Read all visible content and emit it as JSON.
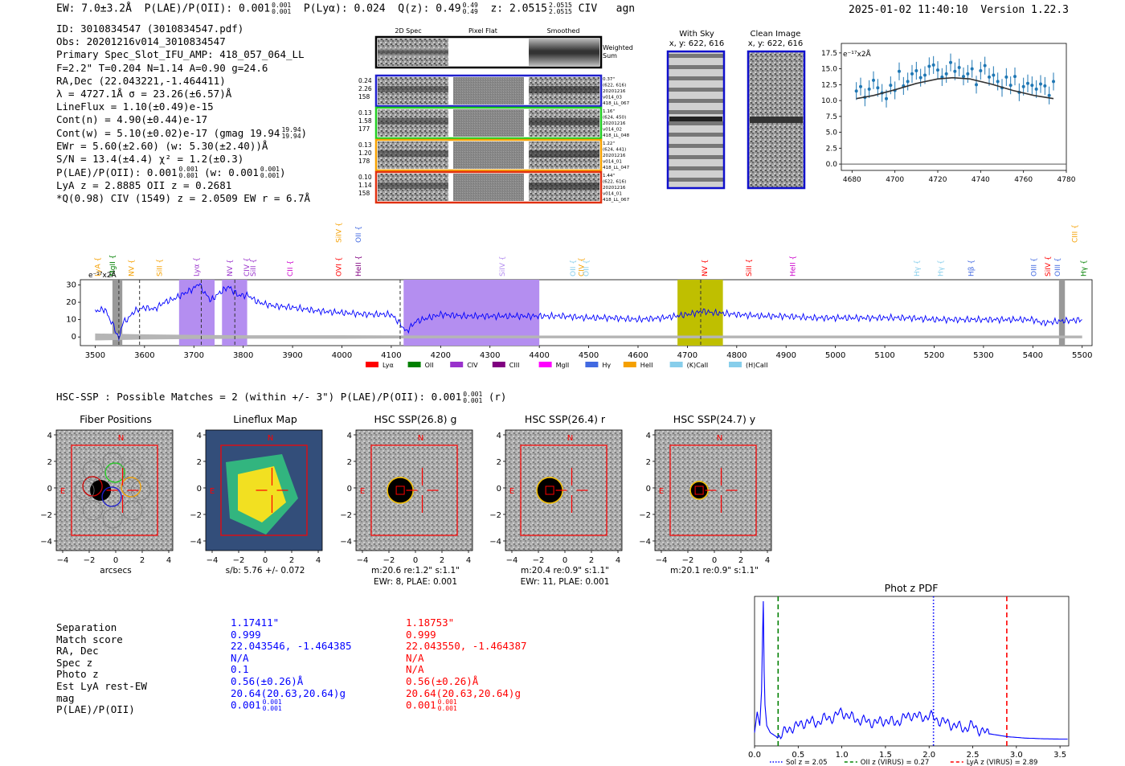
{
  "header": {
    "ew": "EW: 7.0±3.2Å",
    "plae": "P(LAE)/P(OII): 0.001",
    "plae_sup": "0.001",
    "plae_sub": "0.001",
    "plya": "P(Lyα): 0.024",
    "q": "Q(z): 0.49",
    "q_sup": "0.49",
    "q_sub": "0.49",
    "z": "z: 2.0515",
    "z_sup": "2.0515",
    "z_sub": "2.0515",
    "civ": "CIV",
    "agn": "agn",
    "datetime": "2025-01-02 11:40:10",
    "version": "Version 1.22.3"
  },
  "info_lines": [
    "ID: 3010834547 (3010834547.pdf)",
    "Obs: 20201216v014_3010834547",
    "Primary Spec_Slot_IFU_AMP: 418_057_064_LL",
    "F=2.2\"  T=0.204  N=1.14  A=0.90  g=24.6",
    "RA,Dec (22.043221,-1.464411)",
    "λ = 4727.1Å  σ = 23.26(±6.57)Å",
    "LineFlux = 1.10(±0.49)e-15",
    "Cont(n) = 4.90(±0.44)e-17",
    "Cont(w) = 5.10(±0.02)e-17 (gmag 19.94",
    "EWr = 5.60(±2.60) (w: 5.30(±2.40))Å",
    "S/N = 13.4(±4.4)  χ² = 1.2(±0.3)",
    "P(LAE)/P(OII): 0.001",
    "LyA z = 2.8885  OII z = 0.2681",
    "*Q(0.98) CIV (1549) z = 2.0509  EW r = 6.7Å"
  ],
  "info_extras": {
    "gmag_sup": "19.94",
    "gmag_sub": "19.94",
    "plae_a_sup": "0.001",
    "plae_a_sub": "0.001",
    "plae_w": "(w: 0.001",
    "plae_w_sup": "0.001",
    "plae_w_sub": "0.001",
    "plae_w_close": ")"
  },
  "fibers": {
    "col_headers": [
      "2D Spec",
      "Pixel Flat",
      "Smoothed"
    ],
    "weighted_label_1": "Weighted",
    "weighted_label_2": "Sum",
    "rows": [
      {
        "stats": [
          "0.24",
          "2.26",
          "158"
        ],
        "meta": [
          "0.37\"",
          "(622, 616)",
          "20201216",
          "v014_03",
          "418_LL_067"
        ],
        "color": "#1f1fcc"
      },
      {
        "stats": [
          "0.13",
          "1.58",
          "177"
        ],
        "meta": [
          "1.16\"",
          "(624, 450)",
          "20201216",
          "v014_02",
          "418_LL_048"
        ],
        "color": "#22cc22"
      },
      {
        "stats": [
          "0.13",
          "1.20",
          "178"
        ],
        "meta": [
          "1.22\"",
          "(624, 441)",
          "20201216",
          "v014_01",
          "418_LL_047"
        ],
        "color": "#f5a000"
      },
      {
        "stats": [
          "0.10",
          "1.14",
          "158"
        ],
        "meta": [
          "1.44\"",
          "(622, 616)",
          "20201216",
          "v014_01",
          "418_LL_067"
        ],
        "color": "#e03010"
      }
    ]
  },
  "cutouts_2d": {
    "with_sky_title": "With Sky",
    "with_sky_coords": "x, y: 622, 616",
    "clean_title": "Clean Image",
    "clean_coords": "x, y: 622, 616"
  },
  "line_fit": {
    "ylabel": "e⁻¹⁷x2Å",
    "yticks": [
      "0.0",
      "2.5",
      "5.0",
      "7.5",
      "10.0",
      "12.5",
      "15.0",
      "17.5"
    ],
    "xticks": [
      "4680",
      "4700",
      "4720",
      "4740",
      "4760",
      "4780"
    ]
  },
  "chart_data": [
    {
      "type": "scatter",
      "title": "",
      "xlabel": "",
      "ylabel": "e-17 x2Å",
      "xlim": [
        4675,
        4780
      ],
      "ylim": [
        -1,
        19
      ],
      "series": [
        {
          "name": "data",
          "x": [
            4682,
            4684,
            4686,
            4688,
            4690,
            4692,
            4694,
            4696,
            4698,
            4700,
            4702,
            4704,
            4706,
            4708,
            4710,
            4712,
            4714,
            4716,
            4718,
            4720,
            4722,
            4724,
            4726,
            4728,
            4730,
            4732,
            4734,
            4736,
            4738,
            4740,
            4742,
            4744,
            4746,
            4748,
            4750,
            4752,
            4754,
            4756,
            4758,
            4760,
            4762,
            4764,
            4766,
            4768,
            4770,
            4772,
            4774
          ],
          "y": [
            11.5,
            12.2,
            10.5,
            11.8,
            13.2,
            12.0,
            11.2,
            10.3,
            12.4,
            11.6,
            14.6,
            12.3,
            13.0,
            14.2,
            14.7,
            13.6,
            14.0,
            15.4,
            15.6,
            14.8,
            13.7,
            14.2,
            16.0,
            14.6,
            15.2,
            13.8,
            14.2,
            15.0,
            12.5,
            14.7,
            15.5,
            13.7,
            14.0,
            13.0,
            12.0,
            13.7,
            12.4,
            13.8,
            11.3,
            12.2,
            12.7,
            12.4,
            11.8,
            12.6,
            12.3,
            10.8,
            13.0
          ],
          "yerr": 1.4
        },
        {
          "name": "gaussian fit",
          "x": [
            4682,
            4690,
            4700,
            4710,
            4720,
            4727,
            4735,
            4745,
            4755,
            4765,
            4774
          ],
          "y": [
            10.3,
            10.8,
            11.7,
            12.7,
            13.4,
            13.6,
            13.4,
            12.6,
            11.6,
            10.8,
            10.3
          ]
        }
      ]
    },
    {
      "type": "line",
      "title": "",
      "xlabel": "",
      "ylabel": "e-17 x2Å",
      "xlim": [
        3470,
        5520
      ],
      "ylim": [
        -5,
        33
      ],
      "series": [
        {
          "name": "spectrum",
          "x": [
            3500,
            3520,
            3530,
            3540,
            3548,
            3555,
            3565,
            3580,
            3600,
            3620,
            3640,
            3660,
            3680,
            3700,
            3710,
            3720,
            3735,
            3750,
            3770,
            3790,
            3810,
            3830,
            3860,
            3900,
            3950,
            4000,
            4050,
            4100,
            4120,
            4130,
            4150,
            4200,
            4250,
            4300,
            4350,
            4400,
            4450,
            4500,
            4550,
            4600,
            4650,
            4700,
            4720,
            4730,
            4750,
            4800,
            4850,
            4900,
            4950,
            5000,
            5050,
            5100,
            5150,
            5200,
            5250,
            5300,
            5350,
            5400,
            5420,
            5450,
            5500
          ],
          "y": [
            15,
            16,
            10,
            5,
            -2,
            8,
            10,
            15,
            17,
            16,
            20,
            22,
            25,
            28,
            31,
            26,
            21,
            25,
            29,
            24,
            24,
            20,
            18,
            17,
            15,
            14,
            13,
            13,
            7,
            3,
            9,
            13,
            12,
            12,
            12,
            12,
            12,
            11,
            11,
            10,
            11,
            13,
            14,
            15,
            14,
            13,
            12,
            12,
            11,
            11,
            11,
            11,
            11,
            10,
            10,
            10,
            10,
            10,
            8,
            9,
            10
          ]
        },
        {
          "name": "noise",
          "x": [
            3500,
            3600,
            3700,
            3800,
            3900,
            4000,
            4200,
            4400,
            4600,
            4800,
            5000,
            5200,
            5400,
            5500
          ],
          "y": [
            2,
            1.5,
            1.2,
            1.0,
            1.0,
            1.0,
            0.8,
            0.8,
            0.8,
            0.8,
            0.8,
            0.8,
            0.8,
            0.8
          ]
        }
      ],
      "xticks": [
        "3500",
        "3600",
        "3700",
        "3800",
        "3900",
        "4000",
        "4100",
        "4200",
        "4300",
        "4400",
        "4500",
        "4600",
        "4700",
        "4800",
        "4900",
        "5000",
        "5100",
        "5200",
        "5300",
        "5400",
        "5500"
      ],
      "yticks": [
        "0",
        "10",
        "20",
        "30"
      ],
      "shaded_regions": [
        {
          "x0": 3670,
          "x1": 3742,
          "color": "#b48ef0"
        },
        {
          "x0": 3757,
          "x1": 3808,
          "color": "#b48ef0"
        },
        {
          "x0": 4125,
          "x1": 4400,
          "color": "#b48ef0"
        },
        {
          "x0": 4680,
          "x1": 4772,
          "color": "#bfbf00"
        },
        {
          "x0": 3535,
          "x1": 3555,
          "color": "#999999"
        },
        {
          "x0": 5453,
          "x1": 5465,
          "color": "#999999"
        }
      ],
      "vlines": [
        3548,
        3590,
        3715,
        3783,
        4118,
        4727
      ],
      "line_labels": [
        {
          "label": "LyA",
          "x": 3510,
          "tier": 0,
          "color": "#f5a000"
        },
        {
          "label": "MgII",
          "x": 3540,
          "tier": 0,
          "color": "#008000"
        },
        {
          "label": "NV",
          "x": 3578,
          "tier": 0,
          "color": "#f5a000"
        },
        {
          "label": "SiII",
          "x": 3635,
          "tier": 0,
          "color": "#f5a000"
        },
        {
          "label": "Lyα",
          "x": 3710,
          "tier": 0,
          "color": "#9932cc"
        },
        {
          "label": "NV",
          "x": 3778,
          "tier": 0,
          "color": "#9932cc"
        },
        {
          "label": "SiII",
          "x": 3825,
          "tier": 0,
          "color": "#9932cc"
        },
        {
          "label": "CIV",
          "x": 3812,
          "tier": 0,
          "color": "#9932cc"
        },
        {
          "label": "CII",
          "x": 3900,
          "tier": 0,
          "color": "#cc00cc"
        },
        {
          "label": "OVI",
          "x": 3998,
          "tier": 0,
          "color": "#ff0000"
        },
        {
          "label": "SiIV",
          "x": 3998,
          "tier": 1,
          "color": "#f5a000"
        },
        {
          "label": "HeII",
          "x": 4038,
          "tier": 0,
          "color": "#800080"
        },
        {
          "label": "OII",
          "x": 4038,
          "tier": 1,
          "color": "#4169e1"
        },
        {
          "label": "SiIV",
          "x": 4330,
          "tier": 0,
          "color": "#b48ef0"
        },
        {
          "label": "OII",
          "x": 4473,
          "tier": 0,
          "color": "#87ceeb"
        },
        {
          "label": "CIV",
          "x": 4490,
          "tier": 0,
          "color": "#f5a000"
        },
        {
          "label": "OII",
          "x": 4500,
          "tier": 0,
          "color": "#87ceeb"
        },
        {
          "label": "NV",
          "x": 4740,
          "tier": 0,
          "color": "#ff0000"
        },
        {
          "label": "SiII",
          "x": 4830,
          "tier": 0,
          "color": "#ff0000"
        },
        {
          "label": "HeII",
          "x": 4918,
          "tier": 0,
          "color": "#cc00cc"
        },
        {
          "label": "Hγ",
          "x": 5170,
          "tier": 0,
          "color": "#87ceeb"
        },
        {
          "label": "Hγ",
          "x": 5218,
          "tier": 0,
          "color": "#87ceeb"
        },
        {
          "label": "Hβ",
          "x": 5280,
          "tier": 0,
          "color": "#4169e1"
        },
        {
          "label": "OIII",
          "x": 5407,
          "tier": 0,
          "color": "#4169e1"
        },
        {
          "label": "SiIV",
          "x": 5435,
          "tier": 0,
          "color": "#ff0000"
        },
        {
          "label": "OIII",
          "x": 5455,
          "tier": 0,
          "color": "#4169e1"
        },
        {
          "label": "CIII",
          "x": 5490,
          "tier": 1,
          "color": "#f5a000"
        },
        {
          "label": "Hγ",
          "x": 5508,
          "tier": 0,
          "color": "#008000"
        }
      ],
      "legend": [
        {
          "label": "Lyα",
          "color": "#ff0000"
        },
        {
          "label": "OII",
          "color": "#008000"
        },
        {
          "label": "CIV",
          "color": "#9932cc"
        },
        {
          "label": "CIII",
          "color": "#800080"
        },
        {
          "label": "MgII",
          "color": "#ff00ff"
        },
        {
          "label": "Hγ",
          "color": "#4169e1"
        },
        {
          "label": "HeII",
          "color": "#f5a000"
        },
        {
          "label": "(K)CaII",
          "color": "#87ceeb"
        },
        {
          "label": "(H)CaII",
          "color": "#87ceeb"
        }
      ]
    },
    {
      "type": "line",
      "title": "Phot z PDF",
      "xlabel": "",
      "ylabel": "",
      "xlim": [
        0.0,
        3.6
      ],
      "ylim": [
        0,
        1
      ],
      "series": [
        {
          "name": "pdf",
          "x": [
            0.0,
            0.03,
            0.06,
            0.08,
            0.09,
            0.1,
            0.11,
            0.12,
            0.14,
            0.18,
            0.25,
            0.3,
            0.4,
            0.5,
            0.6,
            0.7,
            0.8,
            0.9,
            1.0,
            1.1,
            1.2,
            1.3,
            1.4,
            1.5,
            1.6,
            1.7,
            1.8,
            1.9,
            2.0,
            2.05,
            2.1,
            2.2,
            2.3,
            2.4,
            2.5,
            2.6,
            2.7,
            2.8,
            2.9,
            3.0,
            3.1,
            3.2,
            3.3,
            3.4,
            3.5,
            3.6
          ],
          "y": [
            0.05,
            0.2,
            0.1,
            0.35,
            0.7,
            1.0,
            0.5,
            0.25,
            0.1,
            0.05,
            0.02,
            0.03,
            0.08,
            0.1,
            0.13,
            0.12,
            0.15,
            0.16,
            0.2,
            0.16,
            0.14,
            0.13,
            0.12,
            0.14,
            0.12,
            0.15,
            0.18,
            0.16,
            0.17,
            0.16,
            0.14,
            0.12,
            0.1,
            0.08,
            0.1,
            0.06,
            0.04,
            0.03,
            0.02,
            0.015,
            0.01,
            0.008,
            0.005,
            0.004,
            0.003,
            0.003
          ]
        }
      ],
      "xticks": [
        "0.0",
        "0.5",
        "1.0",
        "1.5",
        "2.0",
        "2.5",
        "3.0",
        "3.5"
      ],
      "vlines": [
        {
          "x": 2.05,
          "style": "dotted",
          "color": "#0000ff"
        },
        {
          "x": 0.27,
          "style": "dashed",
          "color": "#008000"
        },
        {
          "x": 2.89,
          "style": "dashed",
          "color": "#ff0000"
        }
      ],
      "legend": [
        {
          "label": "Sol z = 2.05",
          "color": "#0000ff",
          "style": "dotted"
        },
        {
          "label": "OII z (VIRUS) = 0.27",
          "color": "#008000",
          "style": "dashed"
        },
        {
          "label": "LyA z (VIRUS) = 2.89",
          "color": "#ff0000",
          "style": "dashed"
        }
      ]
    }
  ],
  "spectrum_labels": {
    "ylabel": "e⁻¹⁷x2Å"
  },
  "hsc": {
    "heading": "HSC-SSP : Possible Matches = 2 (within +/- 3\")  P(LAE)/P(OII): 0.001",
    "heading_sup": "0.001",
    "heading_sub": "0.001",
    "heading_tail": "(r)",
    "cutouts": [
      {
        "title": "Fiber Positions",
        "caption1": "arcsecs",
        "caption2": ""
      },
      {
        "title": "Lineflux Map",
        "caption1": "s/b: 5.76 +/- 0.072",
        "caption2": ""
      },
      {
        "title": "HSC SSP(26.8) g",
        "caption1": "m:20.6  re:1.2\"  s:1.1\"",
        "caption2": "EWr: 8, PLAE: 0.001"
      },
      {
        "title": "HSC SSP(26.4) r",
        "caption1": "m:20.4  re:0.9\"  s:1.1\"",
        "caption2": "EWr: 11, PLAE: 0.001"
      },
      {
        "title": "HSC SSP(24.7) y",
        "caption1": "m:20.1  re:0.9\"  s:1.1\"",
        "caption2": ""
      }
    ],
    "axis_ticks": [
      "4",
      "2",
      "0",
      "−2",
      "−4"
    ],
    "x_ticks": [
      "−4",
      "−2",
      "0",
      "2",
      "4"
    ],
    "n_label": "N",
    "e_label": "E"
  },
  "match_table": {
    "labels": [
      "Separation",
      "Match score",
      "RA, Dec",
      "Spec z",
      "Photo z",
      "Est LyA rest-EW",
      "mag",
      "P(LAE)/P(OII)"
    ],
    "match1": [
      "1.17411\"",
      "0.999",
      "22.043546, -1.464385",
      "N/A",
      "0.1",
      "0.56(±0.26)Å",
      "20.64(20.63,20.64)g",
      "0.001"
    ],
    "match1_sup": "0.001",
    "match1_sub": "0.001",
    "match2": [
      "1.18753\"",
      "0.999",
      "22.043550, -1.464387",
      "N/A",
      "N/A",
      "0.56(±0.26)Å",
      "20.64(20.63,20.64)g",
      "0.001"
    ],
    "match2_sup": "0.001",
    "match2_sub": "0.001"
  }
}
